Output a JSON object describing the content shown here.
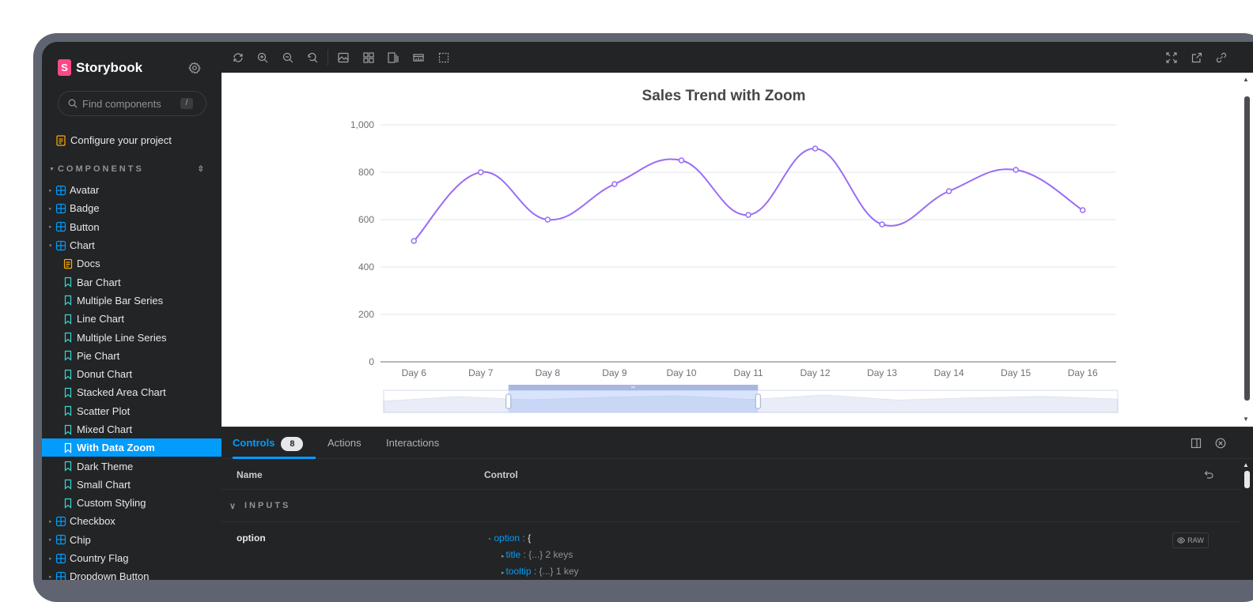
{
  "sidebar": {
    "brand": "Storybook",
    "search_placeholder": "Find components",
    "search_shortcut": "/",
    "configure": "Configure your project",
    "section_label": "COMPONENTS",
    "items": [
      {
        "label": "Avatar",
        "kind": "component"
      },
      {
        "label": "Badge",
        "kind": "component"
      },
      {
        "label": "Button",
        "kind": "component"
      },
      {
        "label": "Chart",
        "kind": "component-open"
      },
      {
        "label": "Docs",
        "kind": "docs"
      },
      {
        "label": "Bar Chart",
        "kind": "story"
      },
      {
        "label": "Multiple Bar Series",
        "kind": "story"
      },
      {
        "label": "Line Chart",
        "kind": "story"
      },
      {
        "label": "Multiple Line Series",
        "kind": "story"
      },
      {
        "label": "Pie Chart",
        "kind": "story"
      },
      {
        "label": "Donut Chart",
        "kind": "story"
      },
      {
        "label": "Stacked Area Chart",
        "kind": "story"
      },
      {
        "label": "Scatter Plot",
        "kind": "story"
      },
      {
        "label": "Mixed Chart",
        "kind": "story"
      },
      {
        "label": "With Data Zoom",
        "kind": "story-selected"
      },
      {
        "label": "Dark Theme",
        "kind": "story"
      },
      {
        "label": "Small Chart",
        "kind": "story"
      },
      {
        "label": "Custom Styling",
        "kind": "story"
      },
      {
        "label": "Checkbox",
        "kind": "component"
      },
      {
        "label": "Chip",
        "kind": "component"
      },
      {
        "label": "Country Flag",
        "kind": "component"
      },
      {
        "label": "Dropdown Button",
        "kind": "component"
      }
    ]
  },
  "toolbar": {
    "left_icons": [
      "remount-icon",
      "zoom-in-icon",
      "zoom-out-icon",
      "zoom-reset-icon",
      "background-icon",
      "grid-icon",
      "viewport-icon",
      "measure-icon",
      "outline-icon"
    ],
    "right_icons": [
      "fullscreen-icon",
      "open-new-tab-icon",
      "copy-link-icon"
    ]
  },
  "chart_data": {
    "type": "line",
    "title": "Sales Trend with Zoom",
    "categories": [
      "Day 6",
      "Day 7",
      "Day 8",
      "Day 9",
      "Day 10",
      "Day 11",
      "Day 12",
      "Day 13",
      "Day 14",
      "Day 15",
      "Day 16"
    ],
    "values": [
      510,
      800,
      600,
      750,
      850,
      620,
      900,
      580,
      720,
      810,
      640
    ],
    "ylim": [
      0,
      1000
    ],
    "yticks": [
      "0",
      "200",
      "400",
      "600",
      "800",
      "1,000"
    ],
    "smooth": true,
    "grid": true,
    "color": "#9a6cf5",
    "data_zoom": {
      "start_percent": 17,
      "end_percent": 51
    }
  },
  "panel": {
    "tabs": [
      {
        "label": "Controls",
        "badge": "8"
      },
      {
        "label": "Actions"
      },
      {
        "label": "Interactions"
      }
    ],
    "header_name": "Name",
    "header_control": "Control",
    "section": "INPUTS",
    "row_name": "option",
    "json_root_key": "option",
    "json_root_open": "{",
    "json_lines": [
      {
        "key": "title",
        "summary": "{...} 2 keys"
      },
      {
        "key": "tooltip",
        "summary": "{...} 1 key"
      }
    ],
    "raw_label": "RAW"
  },
  "colors": {
    "accent": "#029cfd",
    "brand": "#ff4785",
    "sidebar_bg": "#222425"
  }
}
